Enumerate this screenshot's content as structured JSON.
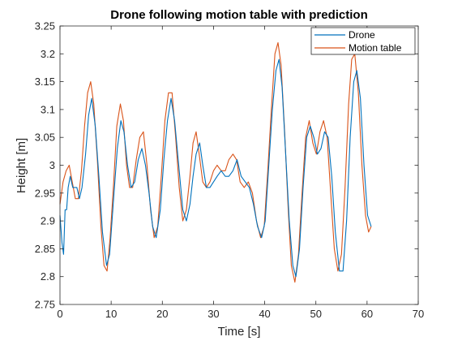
{
  "chart_data": {
    "type": "line",
    "title": "Drone following motion table with prediction",
    "xlabel": "Time [s]",
    "ylabel": "Height [m]",
    "xlim": [
      0,
      70
    ],
    "ylim": [
      2.75,
      3.25
    ],
    "xticks": [
      0,
      10,
      20,
      30,
      40,
      50,
      60,
      70
    ],
    "yticks": [
      2.75,
      2.8,
      2.85,
      2.9,
      2.95,
      3,
      3.05,
      3.1,
      3.15,
      3.2,
      3.25
    ],
    "xtick_labels": [
      "0",
      "10",
      "20",
      "30",
      "40",
      "50",
      "60",
      "70"
    ],
    "ytick_labels": [
      "2.75",
      "2.8",
      "2.85",
      "2.9",
      "2.95",
      "3",
      "3.05",
      "3.1",
      "3.15",
      "3.2",
      "3.25"
    ],
    "legend_position": "top-right",
    "grid": false,
    "series": [
      {
        "name": "Drone",
        "color": "#0072bd",
        "points": [
          [
            0,
            2.91
          ],
          [
            0.4,
            2.86
          ],
          [
            0.7,
            2.84
          ],
          [
            1.0,
            2.92
          ],
          [
            1.3,
            2.92
          ],
          [
            1.6,
            2.96
          ],
          [
            2.0,
            2.98
          ],
          [
            2.5,
            2.96
          ],
          [
            3.3,
            2.96
          ],
          [
            3.8,
            2.94
          ],
          [
            4.3,
            2.96
          ],
          [
            5.0,
            3.02
          ],
          [
            5.6,
            3.09
          ],
          [
            6.2,
            3.12
          ],
          [
            6.9,
            3.07
          ],
          [
            7.6,
            2.98
          ],
          [
            8.3,
            2.88
          ],
          [
            9.1,
            2.82
          ],
          [
            9.7,
            2.84
          ],
          [
            10.4,
            2.93
          ],
          [
            11.2,
            3.03
          ],
          [
            11.9,
            3.08
          ],
          [
            12.5,
            3.06
          ],
          [
            13.2,
            3.0
          ],
          [
            13.9,
            2.96
          ],
          [
            14.6,
            2.97
          ],
          [
            15.3,
            3.01
          ],
          [
            16.0,
            3.03
          ],
          [
            16.7,
            3.0
          ],
          [
            17.4,
            2.95
          ],
          [
            18.1,
            2.89
          ],
          [
            18.8,
            2.87
          ],
          [
            19.6,
            2.92
          ],
          [
            20.3,
            3.01
          ],
          [
            21.0,
            3.08
          ],
          [
            21.7,
            3.12
          ],
          [
            22.4,
            3.08
          ],
          [
            23.2,
            3.0
          ],
          [
            24.0,
            2.92
          ],
          [
            24.7,
            2.9
          ],
          [
            25.4,
            2.93
          ],
          [
            26.0,
            2.98
          ],
          [
            26.6,
            3.02
          ],
          [
            27.3,
            3.04
          ],
          [
            27.9,
            3.0
          ],
          [
            28.6,
            2.96
          ],
          [
            29.3,
            2.96
          ],
          [
            30.0,
            2.97
          ],
          [
            30.7,
            2.98
          ],
          [
            31.5,
            2.99
          ],
          [
            32.3,
            2.98
          ],
          [
            33.0,
            2.98
          ],
          [
            33.8,
            2.99
          ],
          [
            34.6,
            3.01
          ],
          [
            35.4,
            2.98
          ],
          [
            36.2,
            2.97
          ],
          [
            37.0,
            2.96
          ],
          [
            37.8,
            2.93
          ],
          [
            38.6,
            2.89
          ],
          [
            39.4,
            2.87
          ],
          [
            40.1,
            2.9
          ],
          [
            40.8,
            3.0
          ],
          [
            41.5,
            3.1
          ],
          [
            42.2,
            3.17
          ],
          [
            42.8,
            3.19
          ],
          [
            43.4,
            3.14
          ],
          [
            44.1,
            3.02
          ],
          [
            44.8,
            2.9
          ],
          [
            45.5,
            2.82
          ],
          [
            46.1,
            2.8
          ],
          [
            46.8,
            2.85
          ],
          [
            47.5,
            2.96
          ],
          [
            48.2,
            3.05
          ],
          [
            48.9,
            3.07
          ],
          [
            49.6,
            3.05
          ],
          [
            50.3,
            3.02
          ],
          [
            51.0,
            3.03
          ],
          [
            51.7,
            3.06
          ],
          [
            52.4,
            3.05
          ],
          [
            53.1,
            2.98
          ],
          [
            53.8,
            2.88
          ],
          [
            54.6,
            2.81
          ],
          [
            55.3,
            2.81
          ],
          [
            56.0,
            2.9
          ],
          [
            56.7,
            3.05
          ],
          [
            57.4,
            3.15
          ],
          [
            58.0,
            3.17
          ],
          [
            58.7,
            3.12
          ],
          [
            59.4,
            3.0
          ],
          [
            60.1,
            2.91
          ],
          [
            60.8,
            2.89
          ]
        ]
      },
      {
        "name": "Motion table",
        "color": "#d95319",
        "points": [
          [
            0,
            2.93
          ],
          [
            0.6,
            2.97
          ],
          [
            1.2,
            2.99
          ],
          [
            1.8,
            3.0
          ],
          [
            2.4,
            2.97
          ],
          [
            3.0,
            2.94
          ],
          [
            3.6,
            2.94
          ],
          [
            4.2,
            2.99
          ],
          [
            4.8,
            3.07
          ],
          [
            5.4,
            3.13
          ],
          [
            6.0,
            3.15
          ],
          [
            6.6,
            3.11
          ],
          [
            7.3,
            3.01
          ],
          [
            8.0,
            2.89
          ],
          [
            8.6,
            2.82
          ],
          [
            9.2,
            2.81
          ],
          [
            9.8,
            2.87
          ],
          [
            10.5,
            2.97
          ],
          [
            11.1,
            3.07
          ],
          [
            11.8,
            3.11
          ],
          [
            12.4,
            3.08
          ],
          [
            13.0,
            3.0
          ],
          [
            13.6,
            2.96
          ],
          [
            14.2,
            2.96
          ],
          [
            14.9,
            3.01
          ],
          [
            15.6,
            3.05
          ],
          [
            16.3,
            3.06
          ],
          [
            17.0,
            3.0
          ],
          [
            17.7,
            2.92
          ],
          [
            18.4,
            2.87
          ],
          [
            19.1,
            2.89
          ],
          [
            19.8,
            2.98
          ],
          [
            20.5,
            3.08
          ],
          [
            21.2,
            3.13
          ],
          [
            21.9,
            3.13
          ],
          [
            22.6,
            3.05
          ],
          [
            23.3,
            2.96
          ],
          [
            24.0,
            2.9
          ],
          [
            24.7,
            2.92
          ],
          [
            25.4,
            2.98
          ],
          [
            26.0,
            3.04
          ],
          [
            26.6,
            3.06
          ],
          [
            27.2,
            3.02
          ],
          [
            27.9,
            2.97
          ],
          [
            28.6,
            2.96
          ],
          [
            29.3,
            2.97
          ],
          [
            30.0,
            2.99
          ],
          [
            30.7,
            3.0
          ],
          [
            31.5,
            2.99
          ],
          [
            32.3,
            2.99
          ],
          [
            33.0,
            3.01
          ],
          [
            33.8,
            3.02
          ],
          [
            34.5,
            3.01
          ],
          [
            35.2,
            2.97
          ],
          [
            36.0,
            2.96
          ],
          [
            36.8,
            2.97
          ],
          [
            37.6,
            2.95
          ],
          [
            38.4,
            2.9
          ],
          [
            39.2,
            2.87
          ],
          [
            39.9,
            2.89
          ],
          [
            40.6,
            2.99
          ],
          [
            41.3,
            3.1
          ],
          [
            42.0,
            3.2
          ],
          [
            42.6,
            3.22
          ],
          [
            43.2,
            3.18
          ],
          [
            43.9,
            3.06
          ],
          [
            44.6,
            2.92
          ],
          [
            45.2,
            2.82
          ],
          [
            45.9,
            2.79
          ],
          [
            46.6,
            2.84
          ],
          [
            47.3,
            2.95
          ],
          [
            48.0,
            3.05
          ],
          [
            48.7,
            3.08
          ],
          [
            49.4,
            3.04
          ],
          [
            50.1,
            3.02
          ],
          [
            50.8,
            3.06
          ],
          [
            51.5,
            3.08
          ],
          [
            52.2,
            3.05
          ],
          [
            52.9,
            2.95
          ],
          [
            53.6,
            2.85
          ],
          [
            54.3,
            2.81
          ],
          [
            55.0,
            2.84
          ],
          [
            55.7,
            2.96
          ],
          [
            56.4,
            3.11
          ],
          [
            57.0,
            3.19
          ],
          [
            57.6,
            3.2
          ],
          [
            58.3,
            3.13
          ],
          [
            59.0,
            3.0
          ],
          [
            59.7,
            2.91
          ],
          [
            60.3,
            2.88
          ],
          [
            60.8,
            2.89
          ]
        ]
      }
    ]
  }
}
